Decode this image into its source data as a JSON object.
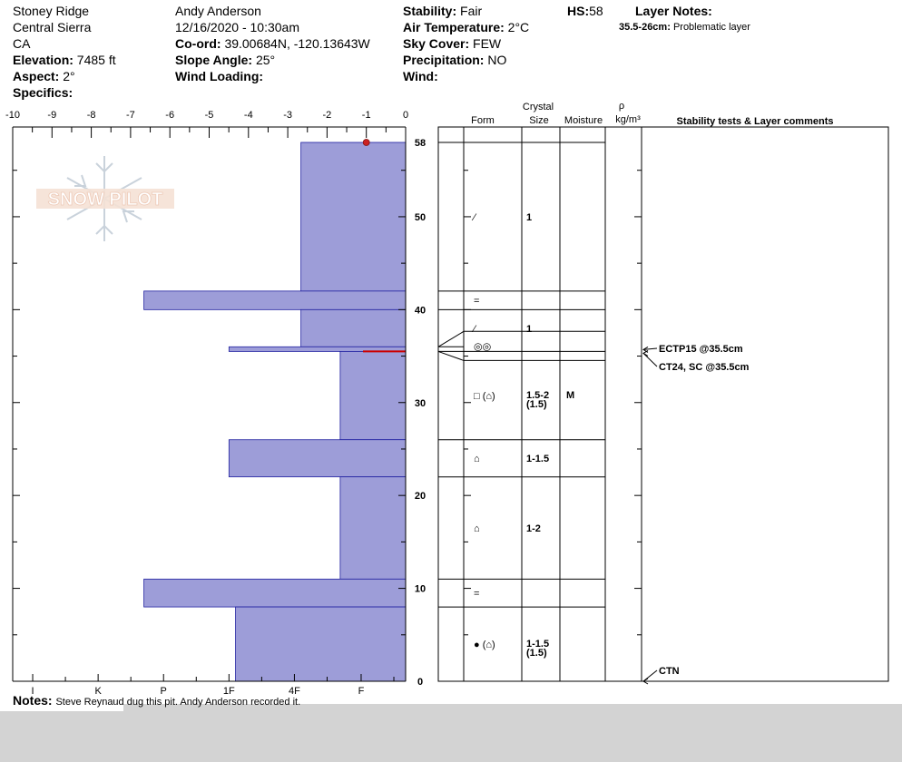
{
  "header": {
    "location": "Stoney Ridge",
    "range": "Central Sierra",
    "state": "CA",
    "elevation_label": "Elevation:",
    "elevation": "7485 ft",
    "aspect_label": "Aspect:",
    "aspect": "2°",
    "specifics_label": "Specifics:",
    "observer": "Andy Anderson",
    "datetime": "12/16/2020 - 10:30am",
    "coord_label": "Co-ord:",
    "coord": "39.00684N, -120.13643W",
    "slope_label": "Slope Angle:",
    "slope": "25°",
    "wind_loading_label": "Wind Loading:",
    "stability_label": "Stability:",
    "stability": "Fair",
    "air_temp_label": "Air Temperature:",
    "air_temp": "2°C",
    "sky_label": "Sky Cover:",
    "sky": "FEW",
    "precip_label": "Precipitation:",
    "precip": "NO",
    "wind_label": "Wind:",
    "hs_label": "HS:",
    "hs": "58",
    "layer_notes_label": "Layer Notes:",
    "layer_note_range": "35.5-26cm:",
    "layer_note_text": "Problematic layer"
  },
  "logo_text": "SNOW PILOT",
  "column_headers": {
    "crystal": "Crystal",
    "form": "Form",
    "size": "Size",
    "moisture": "Moisture",
    "rho": "ρ",
    "density_unit": "kg/m³",
    "stability": "Stability tests & Layer comments"
  },
  "notes": {
    "label": "Notes:",
    "text": "Steve Reynaud dug this pit. Andy Anderson recorded it."
  },
  "colors": {
    "hardness_fill": "#9d9dd8",
    "hardness_stroke": "#2020a0",
    "weak_layer": "#cc0000",
    "temp_point": "#cc2222",
    "background_band": "#d3d3d3"
  },
  "chart_data": {
    "type": "bar",
    "orientation": "horizontal",
    "x_label": "",
    "y_label": "",
    "temperature_axis_ticks": [
      "-10",
      "-9",
      "-8",
      "-7",
      "-6",
      "-5",
      "-4",
      "-3",
      "-2",
      "-1",
      "0"
    ],
    "temperature_range": [
      -10,
      0
    ],
    "hardness_axis_ticks": [
      "I",
      "K",
      "P",
      "1F",
      "4F",
      "F"
    ],
    "height_axis_ticks": [
      "58",
      "50",
      "40",
      "30",
      "20",
      "10",
      "0"
    ],
    "height_range": [
      0,
      58
    ],
    "hardness_scale": {
      "F": 1,
      "4F": 2,
      "1F": 3,
      "P": 4
    },
    "layers": [
      {
        "bottom": 42,
        "top": 58,
        "hardness": 1.6
      },
      {
        "bottom": 40,
        "top": 42,
        "hardness": 4
      },
      {
        "bottom": 36,
        "top": 40,
        "hardness": 1.6
      },
      {
        "bottom": 35.5,
        "top": 36,
        "hardness": 2.7
      },
      {
        "bottom": 26,
        "top": 35.5,
        "hardness": 1
      },
      {
        "bottom": 22,
        "top": 26,
        "hardness": 2.7
      },
      {
        "bottom": 11,
        "top": 22,
        "hardness": 1
      },
      {
        "bottom": 8,
        "top": 11,
        "hardness": 4
      },
      {
        "bottom": 0,
        "top": 8,
        "hardness": 2.6
      }
    ],
    "weak_layer_height": 35.5,
    "temperature_points": [
      {
        "height": 58,
        "temp": -1
      }
    ],
    "profile_rows": [
      {
        "bottom": 42,
        "top": 58,
        "form": "⁄",
        "size": "1",
        "size2": "",
        "moisture": ""
      },
      {
        "bottom": 40,
        "top": 42,
        "form": "=",
        "size": "",
        "size2": "",
        "moisture": ""
      },
      {
        "bottom": 36,
        "top": 40,
        "form": "⁄",
        "size": "1",
        "size2": "",
        "moisture": ""
      },
      {
        "bottom": 35.5,
        "top": 36,
        "form": "◎◎",
        "size": "",
        "size2": "",
        "moisture": ""
      },
      {
        "bottom": 26,
        "top": 35.5,
        "form": "□ (⌂)",
        "size": "1.5-2",
        "size2": "(1.5)",
        "moisture": "M"
      },
      {
        "bottom": 22,
        "top": 26,
        "form": "⌂",
        "size": "1-1.5",
        "size2": "",
        "moisture": ""
      },
      {
        "bottom": 11,
        "top": 22,
        "form": "⌂",
        "size": "1-2",
        "size2": "",
        "moisture": ""
      },
      {
        "bottom": 8,
        "top": 11,
        "form": "=",
        "size": "",
        "size2": "",
        "moisture": ""
      },
      {
        "bottom": 0,
        "top": 8,
        "form": "● (⌂)",
        "size": "1-1.5",
        "size2": "(1.5)",
        "moisture": ""
      }
    ],
    "stability_tests": [
      {
        "label": "ECTP15 @35.5cm"
      },
      {
        "label": "CT24, SC @35.5cm"
      },
      {
        "label": "CTN"
      }
    ]
  }
}
